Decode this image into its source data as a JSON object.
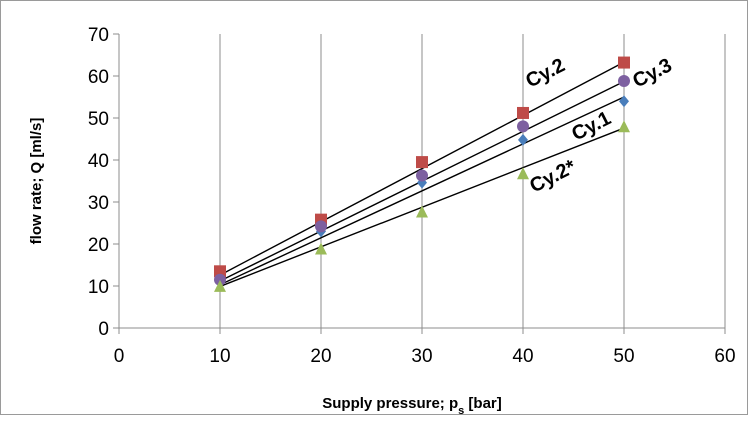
{
  "chart_data": {
    "type": "scatter",
    "xlabel": "Supply pressure; p",
    "xlabel_sub": "s",
    "xlabel_unit": " [bar]",
    "ylabel": "flow rate; Q [ml/s]",
    "xlim": [
      0,
      60
    ],
    "ylim": [
      0,
      70
    ],
    "xticks": [
      0,
      10,
      20,
      30,
      40,
      50,
      60
    ],
    "yticks": [
      0,
      10,
      20,
      30,
      40,
      50,
      60,
      70
    ],
    "grid": "vertical",
    "x": [
      10,
      20,
      30,
      40,
      50
    ],
    "series": [
      {
        "name": "Cy.1",
        "marker": "diamond",
        "color": "#4a7ebb",
        "values": [
          11.2,
          23.0,
          34.6,
          44.8,
          54.0
        ],
        "trend": [
          10.3,
          55.0
        ]
      },
      {
        "name": "Cy.2",
        "marker": "square",
        "color": "#be4b48",
        "values": [
          13.5,
          25.8,
          39.5,
          51.2,
          63.2
        ],
        "trend": [
          12.6,
          63.3
        ]
      },
      {
        "name": "Cy.3",
        "marker": "circle",
        "color": "#7d60a0",
        "values": [
          11.5,
          24.2,
          36.3,
          48.0,
          58.8
        ],
        "trend": [
          11.2,
          58.7
        ]
      },
      {
        "name": "Cy.2*",
        "marker": "triangle",
        "color": "#9bbb59",
        "values": [
          9.8,
          18.7,
          27.5,
          36.6,
          47.8
        ],
        "trend": [
          9.9,
          47.6
        ]
      }
    ]
  }
}
